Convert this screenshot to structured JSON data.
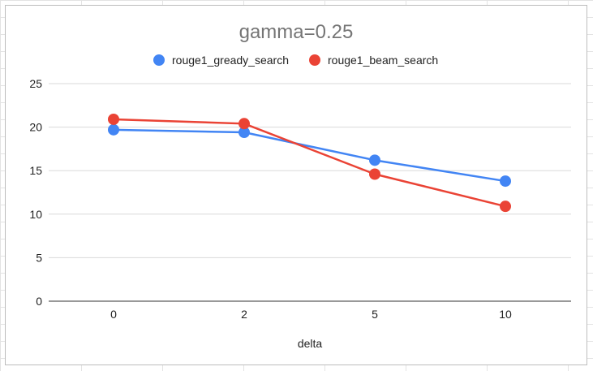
{
  "chart_data": {
    "type": "line",
    "title": "gamma=0.25",
    "xlabel": "delta",
    "ylabel": "",
    "categories": [
      "0",
      "2",
      "5",
      "10"
    ],
    "ylim": [
      0,
      25
    ],
    "yticks": [
      "0",
      "5",
      "10",
      "15",
      "20",
      "25"
    ],
    "grid": true,
    "legend_position": "top",
    "series": [
      {
        "name": "rouge1_gready_search",
        "color": "#4285f4",
        "values": [
          19.7,
          19.4,
          16.2,
          13.8
        ]
      },
      {
        "name": "rouge1_beam_search",
        "color": "#ea4335",
        "values": [
          20.9,
          20.4,
          14.6,
          10.9
        ]
      }
    ]
  }
}
